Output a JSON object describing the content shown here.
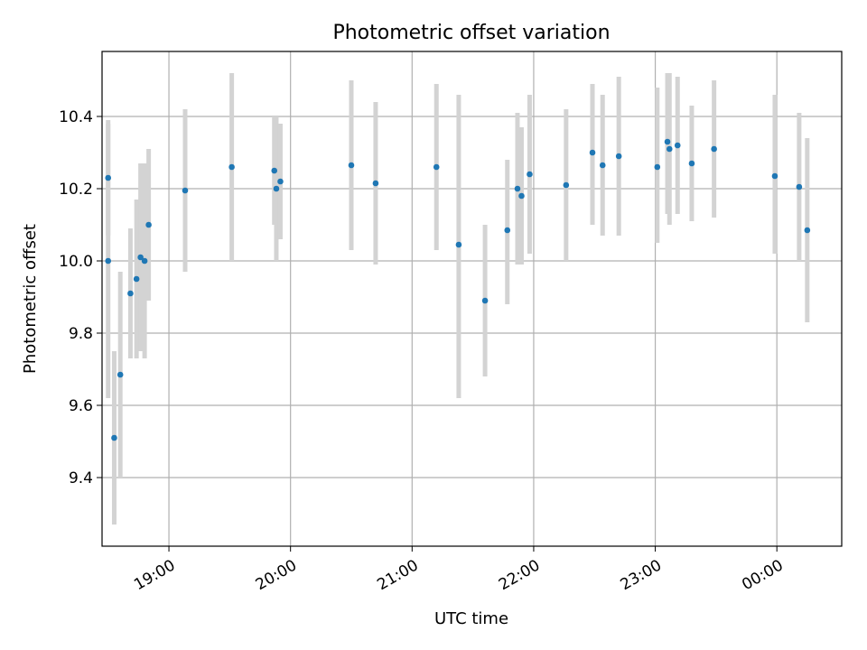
{
  "chart_data": {
    "type": "scatter",
    "title": "Photometric offset variation",
    "xlabel": "UTC time",
    "ylabel": "Photometric offset",
    "x_unit": "time of day (UTC)",
    "xlim": [
      "18:27",
      "00:32"
    ],
    "ylim": [
      9.21,
      10.58
    ],
    "grid": true,
    "x_ticks": [
      {
        "label": "19:00",
        "x": "19:00"
      },
      {
        "label": "20:00",
        "x": "20:00"
      },
      {
        "label": "21:00",
        "x": "21:00"
      },
      {
        "label": "22:00",
        "x": "22:00"
      },
      {
        "label": "23:00",
        "x": "23:00"
      },
      {
        "label": "00:00",
        "x": "00:00"
      }
    ],
    "y_ticks": [
      {
        "label": "9.4",
        "value": 9.4
      },
      {
        "label": "9.6",
        "value": 9.6
      },
      {
        "label": "9.8",
        "value": 9.8
      },
      {
        "label": "10.0",
        "value": 10.0
      },
      {
        "label": "10.2",
        "value": 10.2
      },
      {
        "label": "10.4",
        "value": 10.4
      }
    ],
    "colors": {
      "marker": "#1f77b4",
      "errorbar": "#d3d3d3"
    },
    "points": [
      {
        "x": "18:30",
        "y": 10.23,
        "ylow": 10.07,
        "yhigh": 10.39
      },
      {
        "x": "18:30",
        "y": 10.0,
        "ylow": 9.62,
        "yhigh": 10.38
      },
      {
        "x": "18:33",
        "y": 9.51,
        "ylow": 9.27,
        "yhigh": 9.75
      },
      {
        "x": "18:36",
        "y": 9.685,
        "ylow": 9.4,
        "yhigh": 9.97
      },
      {
        "x": "18:41",
        "y": 9.91,
        "ylow": 9.73,
        "yhigh": 10.09
      },
      {
        "x": "18:44",
        "y": 9.95,
        "ylow": 9.73,
        "yhigh": 10.17
      },
      {
        "x": "18:46",
        "y": 10.01,
        "ylow": 9.75,
        "yhigh": 10.27
      },
      {
        "x": "18:48",
        "y": 10.0,
        "ylow": 9.73,
        "yhigh": 10.27
      },
      {
        "x": "18:50",
        "y": 10.1,
        "ylow": 9.89,
        "yhigh": 10.31
      },
      {
        "x": "19:08",
        "y": 10.195,
        "ylow": 9.97,
        "yhigh": 10.42
      },
      {
        "x": "19:31",
        "y": 10.26,
        "ylow": 10.0,
        "yhigh": 10.52
      },
      {
        "x": "19:52",
        "y": 10.25,
        "ylow": 10.1,
        "yhigh": 10.4
      },
      {
        "x": "19:53",
        "y": 10.2,
        "ylow": 10.0,
        "yhigh": 10.4
      },
      {
        "x": "19:55",
        "y": 10.22,
        "ylow": 10.06,
        "yhigh": 10.38
      },
      {
        "x": "20:30",
        "y": 10.265,
        "ylow": 10.03,
        "yhigh": 10.5
      },
      {
        "x": "20:42",
        "y": 10.215,
        "ylow": 9.99,
        "yhigh": 10.44
      },
      {
        "x": "21:12",
        "y": 10.26,
        "ylow": 10.03,
        "yhigh": 10.49
      },
      {
        "x": "21:23",
        "y": 10.045,
        "ylow": 9.62,
        "yhigh": 10.46
      },
      {
        "x": "21:36",
        "y": 9.89,
        "ylow": 9.68,
        "yhigh": 10.1
      },
      {
        "x": "21:47",
        "y": 10.085,
        "ylow": 9.88,
        "yhigh": 10.28
      },
      {
        "x": "21:52",
        "y": 10.2,
        "ylow": 9.99,
        "yhigh": 10.41
      },
      {
        "x": "21:54",
        "y": 10.18,
        "ylow": 9.99,
        "yhigh": 10.37
      },
      {
        "x": "21:58",
        "y": 10.24,
        "ylow": 10.02,
        "yhigh": 10.46
      },
      {
        "x": "22:16",
        "y": 10.21,
        "ylow": 10.0,
        "yhigh": 10.42
      },
      {
        "x": "22:29",
        "y": 10.3,
        "ylow": 10.1,
        "yhigh": 10.49
      },
      {
        "x": "22:34",
        "y": 10.265,
        "ylow": 10.07,
        "yhigh": 10.46
      },
      {
        "x": "22:42",
        "y": 10.29,
        "ylow": 10.07,
        "yhigh": 10.51
      },
      {
        "x": "23:01",
        "y": 10.26,
        "ylow": 10.05,
        "yhigh": 10.48
      },
      {
        "x": "23:06",
        "y": 10.33,
        "ylow": 10.13,
        "yhigh": 10.52
      },
      {
        "x": "23:07",
        "y": 10.31,
        "ylow": 10.1,
        "yhigh": 10.52
      },
      {
        "x": "23:11",
        "y": 10.32,
        "ylow": 10.13,
        "yhigh": 10.51
      },
      {
        "x": "23:18",
        "y": 10.27,
        "ylow": 10.11,
        "yhigh": 10.43
      },
      {
        "x": "23:29",
        "y": 10.31,
        "ylow": 10.12,
        "yhigh": 10.5
      },
      {
        "x": "23:59",
        "y": 10.235,
        "ylow": 10.02,
        "yhigh": 10.46
      },
      {
        "x": "00:11",
        "y": 10.205,
        "ylow": 10.0,
        "yhigh": 10.41
      },
      {
        "x": "00:15",
        "y": 10.085,
        "ylow": 9.83,
        "yhigh": 10.34
      }
    ]
  }
}
